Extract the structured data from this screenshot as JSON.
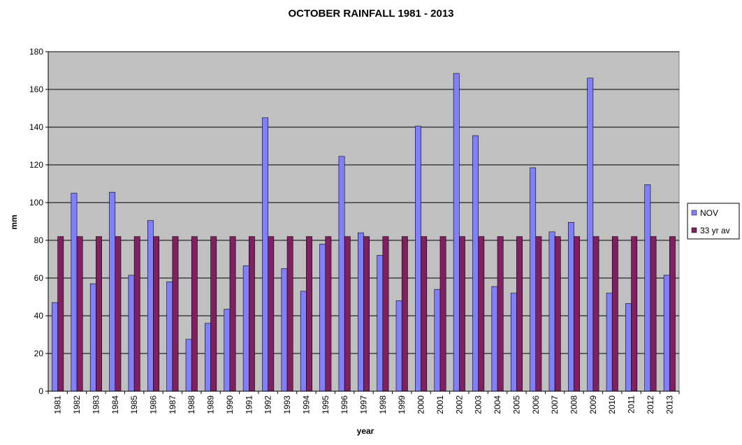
{
  "chart_data": {
    "type": "bar",
    "title": "OCTOBER RAINFALL 1981 - 2013",
    "xlabel": "year",
    "ylabel": "mm",
    "ylim": [
      0,
      180
    ],
    "yticks": [
      0,
      20,
      40,
      60,
      80,
      100,
      120,
      140,
      160,
      180
    ],
    "grid": true,
    "legend_position": "right",
    "categories": [
      "1981",
      "1982",
      "1983",
      "1984",
      "1985",
      "1986",
      "1987",
      "1988",
      "1989",
      "1990",
      "1991",
      "1992",
      "1993",
      "1994",
      "1995",
      "1996",
      "1997",
      "1998",
      "1999",
      "2000",
      "2001",
      "2002",
      "2003",
      "2004",
      "2005",
      "2006",
      "2007",
      "2008",
      "2009",
      "2010",
      "2011",
      "2012",
      "2013"
    ],
    "series": [
      {
        "name": "NOV",
        "color": "#8080ff",
        "values": [
          47,
          105,
          57,
          105.5,
          61.5,
          90.5,
          58,
          27.5,
          36,
          43.5,
          66.5,
          145,
          65,
          53,
          78,
          124.5,
          84,
          72,
          48,
          140.5,
          54,
          168.5,
          135.5,
          55.5,
          52,
          118.5,
          84.5,
          89.5,
          166,
          52,
          46.5,
          109.5,
          61.5
        ]
      },
      {
        "name": "33 yr av",
        "color": "#802060",
        "values": [
          82,
          82,
          82,
          82,
          82,
          82,
          82,
          82,
          82,
          82,
          82,
          82,
          82,
          82,
          82,
          82,
          82,
          82,
          82,
          82,
          82,
          82,
          82,
          82,
          82,
          82,
          82,
          82,
          82,
          82,
          82,
          82,
          82
        ]
      }
    ],
    "plot_background": "#c0c0c0"
  }
}
